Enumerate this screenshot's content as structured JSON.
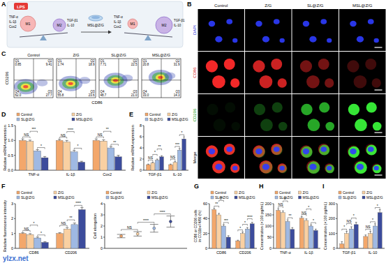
{
  "panel_labels": [
    "A",
    "B",
    "C",
    "D",
    "E",
    "F",
    "G",
    "H",
    "I"
  ],
  "watermark": "ylzx.net",
  "schematic": {
    "stimulus": "LPS",
    "treatment": "MSL@Z/G",
    "cells": [
      "M1",
      "M2"
    ],
    "m1_markers": [
      "TNF-α",
      "IL-1β",
      "Cox2"
    ],
    "m2_markers": [
      "TGF-β1",
      "IL-10"
    ]
  },
  "staining": {
    "groups": [
      "Control",
      "Z/G",
      "SL@Z/G",
      "MSL@Z/G"
    ],
    "channels": [
      "DAPI",
      "CD86",
      "CD206",
      "Merge"
    ]
  },
  "flow": {
    "xlabel": "CD86",
    "ylabel": "CD206",
    "plots": [
      {
        "group": "Control",
        "quadrants": [
          {
            "name": "Q1",
            "value": "0.85"
          },
          {
            "name": "Q2",
            "value": "9.41"
          },
          {
            "name": "Q3",
            "value": "27.7"
          },
          {
            "name": "Q4",
            "value": "62.0"
          }
        ]
      },
      {
        "group": "Z/G",
        "quadrants": [
          {
            "name": "Q1",
            "value": "1.74"
          },
          {
            "name": "Q2",
            "value": "18.9"
          },
          {
            "name": "Q3",
            "value": "23.6"
          },
          {
            "name": "Q4",
            "value": "55.8"
          }
        ]
      },
      {
        "group": "SL@Z/G",
        "quadrants": [
          {
            "name": "Q1",
            "value": "7.71"
          },
          {
            "name": "Q2",
            "value": "22.5"
          },
          {
            "name": "Q3",
            "value": "21.0"
          },
          {
            "name": "Q4",
            "value": "48.7"
          }
        ]
      },
      {
        "group": "MSL@Z/G",
        "quadrants": [
          {
            "name": "Q1",
            "value": "20.8"
          },
          {
            "name": "Q2",
            "value": "31.9"
          },
          {
            "name": "Q3",
            "value": "14.3"
          },
          {
            "name": "Q4",
            "value": "33.0"
          }
        ]
      }
    ]
  },
  "chart_data": [
    {
      "type": "bar",
      "ylabel": "Relative mRNA expression",
      "categories": [
        "TNF-α",
        "IL-1β",
        "Cox2"
      ],
      "ylim": [
        0,
        1.5
      ],
      "yticks": [
        {
          "value": 0,
          "label": "0.0"
        },
        {
          "value": 0.5,
          "label": "0.5"
        },
        {
          "value": 1,
          "label": "1.0"
        },
        {
          "value": 1.5,
          "label": "1.5"
        }
      ],
      "grid": false,
      "legend": "top",
      "series": [
        {
          "name": "Control",
          "color": "#f3a76b",
          "values": [
            1.0,
            1.0,
            1.0
          ],
          "errors": [
            0.05,
            0.04,
            0.05
          ]
        },
        {
          "name": "Z/G",
          "color": "#f9d0a2",
          "values": [
            0.97,
            0.95,
            0.98
          ],
          "errors": [
            0.04,
            0.05,
            0.04
          ]
        },
        {
          "name": "SL@Z/G",
          "color": "#9fb9e3",
          "values": [
            0.65,
            0.62,
            0.75
          ],
          "errors": [
            0.04,
            0.05,
            0.05
          ]
        },
        {
          "name": "MSL@Z/G",
          "color": "#3c4c9c",
          "values": [
            0.42,
            0.27,
            0.45
          ],
          "errors": [
            0.04,
            0.03,
            0.05
          ]
        }
      ],
      "significance": [
        [
          "NS",
          "***",
          "*"
        ],
        [
          "NS",
          "****",
          "*"
        ],
        [
          "NS",
          "**",
          "**"
        ]
      ]
    },
    {
      "type": "bar",
      "ylabel": "Relative mRNA expression",
      "categories": [
        "TGF-β1",
        "IL-10"
      ],
      "ylim": [
        0,
        8
      ],
      "yticks": [
        0,
        2,
        4,
        6,
        8
      ],
      "grid": false,
      "legend": "top",
      "series": [
        {
          "name": "Control",
          "color": "#f3a76b",
          "values": [
            1.0,
            1.0
          ],
          "errors": [
            0.1,
            0.1
          ]
        },
        {
          "name": "Z/G",
          "color": "#f9d0a2",
          "values": [
            1.3,
            1.4
          ],
          "errors": [
            0.15,
            0.2
          ]
        },
        {
          "name": "SL@Z/G",
          "color": "#9fb9e3",
          "values": [
            1.8,
            3.6
          ],
          "errors": [
            0.2,
            0.3
          ]
        },
        {
          "name": "MSL@Z/G",
          "color": "#3c4c9c",
          "values": [
            2.4,
            5.6
          ],
          "errors": [
            0.2,
            0.4
          ]
        }
      ],
      "significance": [
        [
          "NS",
          "*",
          "**"
        ],
        [
          "NS",
          "***",
          "*"
        ]
      ]
    },
    {
      "type": "bar",
      "ylabel": "Relative fluorescence intensity",
      "categories": [
        "CD86",
        "CD206"
      ],
      "ylim": [
        0,
        3
      ],
      "yticks": [
        0,
        1,
        2,
        3
      ],
      "grid": false,
      "legend": "top",
      "series": [
        {
          "name": "Control",
          "color": "#f3a76b",
          "values": [
            1.0,
            1.0
          ],
          "errors": [
            0.05,
            0.05
          ]
        },
        {
          "name": "Z/G",
          "color": "#f9d0a2",
          "values": [
            0.93,
            1.3
          ],
          "errors": [
            0.06,
            0.1
          ]
        },
        {
          "name": "SL@Z/G",
          "color": "#9fb9e3",
          "values": [
            0.7,
            1.6
          ],
          "errors": [
            0.06,
            0.1
          ]
        },
        {
          "name": "MSL@Z/G",
          "color": "#3c4c9c",
          "values": [
            0.4,
            2.6
          ],
          "errors": [
            0.05,
            0.15
          ]
        }
      ],
      "significance": [
        [
          "NS",
          "*",
          "*"
        ],
        [
          "NS",
          "**",
          "****"
        ]
      ]
    },
    {
      "type": "dot",
      "ylabel": "Cell elongation",
      "categories": [
        null
      ],
      "ylim": [
        0,
        4
      ],
      "yticks": [
        0,
        1,
        2,
        3,
        4
      ],
      "grid": false,
      "legend": "top",
      "series": [
        {
          "name": "Control",
          "color": "#f3a76b",
          "values": [
            1.1
          ],
          "errors": [
            0.15
          ]
        },
        {
          "name": "Z/G",
          "color": "#f9d0a2",
          "values": [
            1.3
          ],
          "errors": [
            0.2
          ]
        },
        {
          "name": "SL@Z/G",
          "color": "#9fb9e3",
          "values": [
            1.8
          ],
          "errors": [
            0.35
          ]
        },
        {
          "name": "MSL@Z/G",
          "color": "#3c4c9c",
          "values": [
            2.4
          ],
          "errors": [
            0.5
          ]
        }
      ],
      "significance": [
        [
          "NS",
          "****",
          "****"
        ]
      ]
    },
    {
      "type": "bar",
      "ylabel": [
        "CD86 or CD206 cells",
        "in CD11b+F4/80 (%)"
      ],
      "categories": [
        "CD86",
        "CD206"
      ],
      "ylim": [
        0,
        60
      ],
      "yticks": [
        0,
        20,
        40,
        60
      ],
      "grid": false,
      "legend": "top",
      "series": [
        {
          "name": "Control",
          "color": "#f3a76b",
          "values": [
            52,
            10
          ],
          "errors": [
            2,
            1
          ]
        },
        {
          "name": "Z/G",
          "color": "#f9d0a2",
          "values": [
            45,
            20
          ],
          "errors": [
            2,
            2
          ]
        },
        {
          "name": "SL@Z/G",
          "color": "#9fb9e3",
          "values": [
            30,
            26
          ],
          "errors": [
            2,
            2
          ]
        },
        {
          "name": "MSL@Z/G",
          "color": "#3c4c9c",
          "values": [
            15,
            33
          ],
          "errors": [
            2,
            2
          ]
        }
      ],
      "significance": [
        [
          "**",
          "**",
          "***"
        ],
        [
          "*",
          "*",
          "****"
        ]
      ]
    },
    {
      "type": "bar",
      "ylabel": "Concentration (×100 pg/mL)",
      "categories": [
        "TNF-α",
        "IL-1β"
      ],
      "ylim": [
        0,
        200
      ],
      "yticks": [
        0,
        50,
        100,
        150,
        200
      ],
      "grid": false,
      "legend": "top",
      "series": [
        {
          "name": "Control",
          "color": "#f3a76b",
          "values": [
            170,
            135
          ],
          "errors": [
            8,
            7
          ]
        },
        {
          "name": "Z/G",
          "color": "#f9d0a2",
          "values": [
            160,
            125
          ],
          "errors": [
            8,
            7
          ]
        },
        {
          "name": "SL@Z/G",
          "color": "#9fb9e3",
          "values": [
            120,
            100
          ],
          "errors": [
            8,
            6
          ]
        },
        {
          "name": "MSL@Z/G",
          "color": "#3c4c9c",
          "values": [
            85,
            80
          ],
          "errors": [
            8,
            6
          ]
        }
      ],
      "significance": [
        [
          "NS",
          "**",
          "**"
        ],
        [
          "NS",
          "*",
          "*"
        ]
      ]
    },
    {
      "type": "bar",
      "ylabel": "Concentration (×100 pg/mL)",
      "categories": [
        "TGF-β1",
        "IL-10"
      ],
      "ylim": [
        0,
        300
      ],
      "yticks": [
        0,
        100,
        200,
        300
      ],
      "grid": false,
      "legend": "top",
      "series": [
        {
          "name": "Control",
          "color": "#f3a76b",
          "values": [
            30,
            80
          ],
          "errors": [
            15,
            10
          ]
        },
        {
          "name": "Z/G",
          "color": "#f9d0a2",
          "values": [
            100,
            100
          ],
          "errors": [
            15,
            15
          ]
        },
        {
          "name": "SL@Z/G",
          "color": "#9fb9e3",
          "values": [
            130,
            150
          ],
          "errors": [
            15,
            15
          ]
        },
        {
          "name": "MSL@Z/G",
          "color": "#3c4c9c",
          "values": [
            160,
            240
          ],
          "errors": [
            15,
            20
          ]
        }
      ],
      "significance": [
        [
          "*",
          "NS",
          "*"
        ],
        [
          "NS",
          "*",
          "*"
        ]
      ]
    }
  ]
}
